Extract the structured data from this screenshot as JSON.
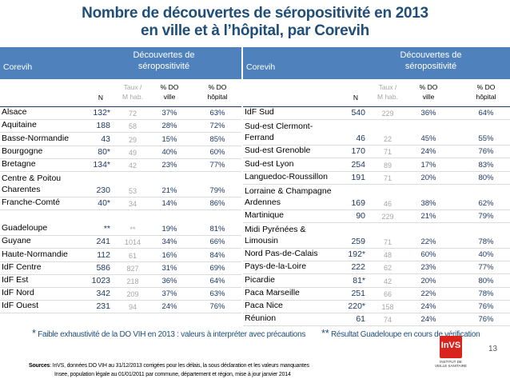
{
  "title": {
    "line1": "Nombre de découvertes de séropositivité en 2013",
    "line2": "en ville et à l’hôpital, par Corevih"
  },
  "header": {
    "region": "Corevih",
    "discoveries_line1": "Découvertes de",
    "discoveries_line2": "séropositivité",
    "col_n": "N",
    "col_taux_line1": "Taux /",
    "col_taux_line2": "M hab.",
    "col_do_ville_line1": "% DO",
    "col_do_ville_line2": "ville",
    "col_do_hop_line1": "% DO",
    "col_do_hop_line2": "hôpital"
  },
  "left_rows": [
    {
      "region": "Alsace",
      "n": "132*",
      "taux": "72",
      "do_ville": "37%",
      "do_hopital": "63%"
    },
    {
      "region": "Aquitaine",
      "n": "188",
      "taux": "58",
      "do_ville": "28%",
      "do_hopital": "72%"
    },
    {
      "region": "Basse-Normandie",
      "n": "43",
      "taux": "29",
      "do_ville": "15%",
      "do_hopital": "85%"
    },
    {
      "region": "Bourgogne",
      "n": "80*",
      "taux": "49",
      "do_ville": "40%",
      "do_hopital": "60%"
    },
    {
      "region": "Bretagne",
      "n": "134*",
      "taux": "42",
      "do_ville": "23%",
      "do_hopital": "77%"
    },
    {
      "region": "Centre & Poitou Charentes",
      "n": "230",
      "taux": "53",
      "do_ville": "21%",
      "do_hopital": "79%"
    },
    {
      "region": "Franche-Comté",
      "n": "40*",
      "taux": "34",
      "do_ville": "14%",
      "do_hopital": "86%"
    },
    {
      "region": "Guadeloupe",
      "n": "**",
      "taux": "**",
      "do_ville": "19%",
      "do_hopital": "81%"
    },
    {
      "region": "Guyane",
      "n": "241",
      "taux": "1014",
      "do_ville": "34%",
      "do_hopital": "66%"
    },
    {
      "region": "Haute-Normandie",
      "n": "112",
      "taux": "61",
      "do_ville": "16%",
      "do_hopital": "84%"
    },
    {
      "region": "IdF Centre",
      "n": "586",
      "taux": "827",
      "do_ville": "31%",
      "do_hopital": "69%"
    },
    {
      "region": "IdF Est",
      "n": "1023",
      "taux": "218",
      "do_ville": "36%",
      "do_hopital": "64%"
    },
    {
      "region": "IdF Nord",
      "n": "342",
      "taux": "209",
      "do_ville": "37%",
      "do_hopital": "63%"
    },
    {
      "region": "IdF Ouest",
      "n": "231",
      "taux": "94",
      "do_ville": "24%",
      "do_hopital": "76%"
    }
  ],
  "right_rows": [
    {
      "region": "IdF Sud",
      "n": "540",
      "taux": "229",
      "do_ville": "36%",
      "do_hopital": "64%"
    },
    {
      "region": "Sud-est Clermont-Ferrand",
      "n": "46",
      "taux": "22",
      "do_ville": "45%",
      "do_hopital": "55%"
    },
    {
      "region": "Sud-est Grenoble",
      "n": "170",
      "taux": "71",
      "do_ville": "24%",
      "do_hopital": "76%"
    },
    {
      "region": "Sud-est Lyon",
      "n": "254",
      "taux": "89",
      "do_ville": "17%",
      "do_hopital": "83%"
    },
    {
      "region": "Languedoc-Roussillon",
      "n": "191",
      "taux": "71",
      "do_ville": "20%",
      "do_hopital": "80%"
    },
    {
      "region": "Lorraine & Champagne Ardennes",
      "n": "169",
      "taux": "46",
      "do_ville": "38%",
      "do_hopital": "62%"
    },
    {
      "region": "Martinique",
      "n": "90",
      "taux": "229",
      "do_ville": "21%",
      "do_hopital": "79%"
    },
    {
      "region": "Midi Pyrénées & Limousin",
      "n": "259",
      "taux": "71",
      "do_ville": "22%",
      "do_hopital": "78%"
    },
    {
      "region": "Nord Pas-de-Calais",
      "n": "192*",
      "taux": "48",
      "do_ville": "60%",
      "do_hopital": "40%"
    },
    {
      "region": "Pays-de-la-Loire",
      "n": "222",
      "taux": "62",
      "do_ville": "23%",
      "do_hopital": "77%"
    },
    {
      "region": "Picardie",
      "n": "81*",
      "taux": "42",
      "do_ville": "20%",
      "do_hopital": "80%"
    },
    {
      "region": "Paca Marseille",
      "n": "251",
      "taux": "66",
      "do_ville": "22%",
      "do_hopital": "78%"
    },
    {
      "region": "Paca Nice",
      "n": "220*",
      "taux": "158",
      "do_ville": "24%",
      "do_hopital": "76%"
    },
    {
      "region": "Réunion",
      "n": "61",
      "taux": "74",
      "do_ville": "24%",
      "do_hopital": "76%"
    }
  ],
  "footnotes": {
    "star_symbol": "*",
    "star_text": "Faible exhaustivité de la DO VIH en 2013 : valeurs à interpréter avec précautions",
    "double_star_symbol": "**",
    "double_star_text": "Résultat Guadeloupe en cours de vérification"
  },
  "sources": {
    "label": "Sources",
    "line1": ": InVS, données DO VIH au 31/12/2013 corrigées pour les délais, la sous déclaration et les valeurs manquantes",
    "line2": "Insee, population légale au 01/01/2011 par commune, département et région, mise à jour janvier 2014"
  },
  "logo": {
    "mark": "InVS",
    "caption": "INSTITUT DE VEILLE SANITAIRE"
  },
  "page_number": "13",
  "colors": {
    "title": "#1f4e79",
    "header_bg": "#4f81bd",
    "number": "#1f3864",
    "muted": "#a6a6a6",
    "logo_red": "#d9231d"
  }
}
